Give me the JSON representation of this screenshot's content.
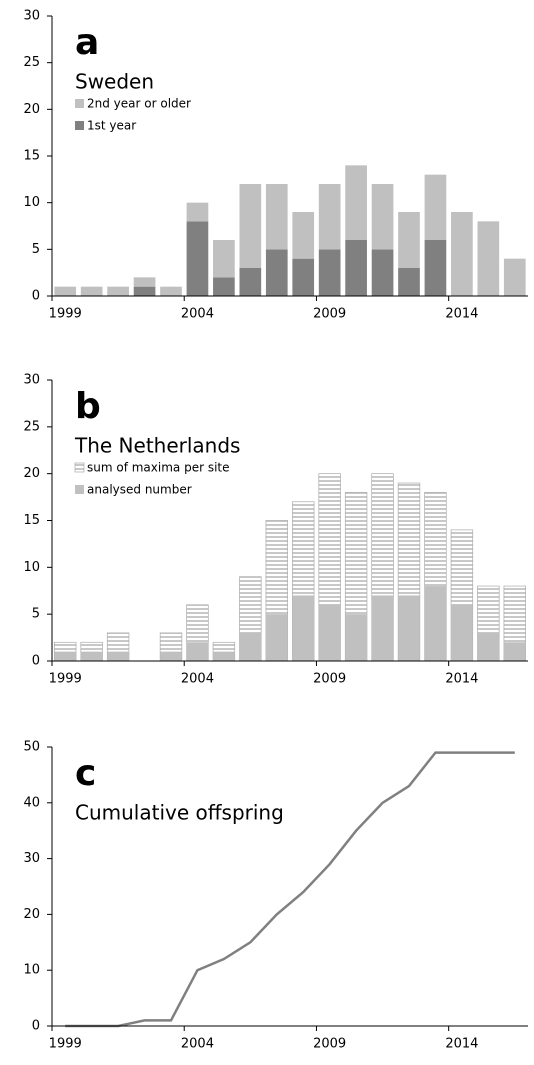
{
  "chart_data": [
    {
      "type": "bar",
      "title": "a",
      "subtitle": "Sweden",
      "categories": [
        "1999",
        null,
        null,
        null,
        null,
        "2004",
        null,
        null,
        null,
        null,
        "2009",
        null,
        null,
        null,
        null,
        "2014",
        null,
        null
      ],
      "series": [
        {
          "name": "2nd year or older",
          "color": "#c0c0c0",
          "values": [
            1,
            1,
            1,
            1,
            1,
            2,
            4,
            9,
            7,
            5,
            7,
            8,
            7,
            6,
            7,
            9,
            8,
            4
          ]
        },
        {
          "name": "1st year",
          "color": "#808080",
          "values": [
            0,
            0,
            0,
            1,
            0,
            8,
            2,
            3,
            5,
            4,
            5,
            6,
            5,
            3,
            6,
            0,
            0,
            0
          ]
        }
      ],
      "stacked": true,
      "ylim": [
        0,
        30
      ],
      "yticks": [
        0,
        5,
        10,
        15,
        20,
        25,
        30
      ]
    },
    {
      "type": "bar",
      "title": "b",
      "subtitle": "The Netherlands",
      "categories": [
        "1999",
        null,
        null,
        null,
        null,
        "2004",
        null,
        null,
        null,
        null,
        "2009",
        null,
        null,
        null,
        null,
        "2014",
        null,
        null
      ],
      "series": [
        {
          "name": "sum of maxima per site",
          "color": "#c0c0c0",
          "hatch": true,
          "values": [
            2,
            2,
            3,
            null,
            3,
            6,
            2,
            9,
            15,
            17,
            20,
            18,
            20,
            19,
            18,
            14,
            8,
            8
          ]
        },
        {
          "name": "analysed number",
          "color": "#c0c0c0",
          "values": [
            1,
            1,
            1,
            null,
            1,
            2,
            1,
            3,
            5,
            7,
            6,
            5,
            7,
            7,
            8,
            6,
            3,
            2
          ]
        }
      ],
      "stacked": false,
      "ylim": [
        0,
        30
      ],
      "yticks": [
        0,
        5,
        10,
        15,
        20,
        25,
        30
      ]
    },
    {
      "type": "line",
      "title": "c",
      "subtitle": "Cumulative offspring",
      "categories": [
        "1999",
        null,
        null,
        null,
        null,
        "2004",
        null,
        null,
        null,
        null,
        "2009",
        null,
        null,
        null,
        null,
        "2014",
        null,
        null
      ],
      "series": [
        {
          "color": "#808080",
          "values": [
            0,
            0,
            0,
            1,
            1,
            10,
            12,
            15,
            20,
            24,
            29,
            35,
            40,
            43,
            49,
            49,
            49,
            49
          ]
        }
      ],
      "ylim": [
        0,
        50
      ],
      "yticks": [
        0,
        10,
        20,
        30,
        40,
        50
      ]
    }
  ]
}
